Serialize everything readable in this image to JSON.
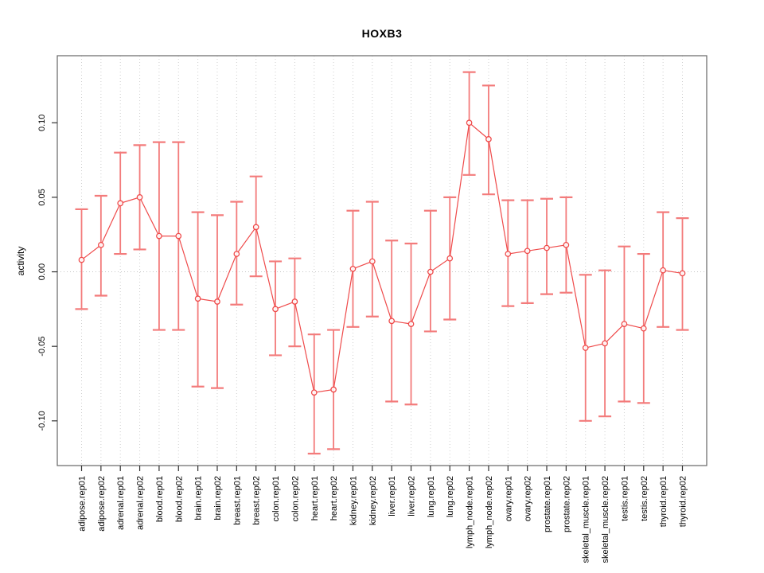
{
  "figure": {
    "kind": "R-style errorbar plot",
    "background": "#ffffff"
  },
  "chart_data": {
    "type": "scatter",
    "title": "HOXB3",
    "xlabel": "",
    "ylabel": "activity",
    "legend": "none",
    "grid": {
      "vertical_dotted_per_category": true,
      "horizontal_dotted_at_zero": true
    },
    "marker": "open-circle",
    "connected": true,
    "error_bars": true,
    "ylim": [
      -0.13,
      0.145
    ],
    "ytick_values": [
      0.1,
      0.05,
      0.0,
      -0.05,
      -0.1
    ],
    "ytick_labels": [
      "0.10",
      "0.05",
      "0.00",
      "-0.05",
      "-0.10"
    ],
    "categories": [
      "adipose.rep01",
      "adipose.rep02",
      "adrenal.rep01",
      "adrenal.rep02",
      "blood.rep01",
      "blood.rep02",
      "brain.rep01",
      "brain.rep02",
      "breast.rep01",
      "breast.rep02",
      "colon.rep01",
      "colon.rep02",
      "heart.rep01",
      "heart.rep02",
      "kidney.rep01",
      "kidney.rep02",
      "liver.rep01",
      "liver.rep02",
      "lung.rep01",
      "lung.rep02",
      "lymph_node.rep01",
      "lymph_node.rep02",
      "ovary.rep01",
      "ovary.rep02",
      "prostate.rep01",
      "prostate.rep02",
      "skeletal_muscle.rep01",
      "skeletal_muscle.rep02",
      "testis.rep01",
      "testis.rep02",
      "thyroid.rep01",
      "thyroid.rep02"
    ],
    "series": [
      {
        "name": "activity",
        "values": [
          0.008,
          0.018,
          0.046,
          0.05,
          0.024,
          0.024,
          -0.018,
          -0.02,
          0.012,
          0.03,
          -0.025,
          -0.02,
          -0.081,
          -0.079,
          0.002,
          0.007,
          -0.033,
          -0.035,
          0.0,
          0.009,
          0.1,
          0.089,
          0.012,
          0.014,
          0.016,
          0.018,
          -0.051,
          -0.048,
          -0.035,
          -0.038,
          0.001,
          -0.001
        ],
        "upper": [
          0.042,
          0.051,
          0.08,
          0.085,
          0.087,
          0.087,
          0.04,
          0.038,
          0.047,
          0.064,
          0.007,
          0.009,
          -0.042,
          -0.039,
          0.041,
          0.047,
          0.021,
          0.019,
          0.041,
          0.05,
          0.134,
          0.125,
          0.048,
          0.048,
          0.049,
          0.05,
          -0.002,
          0.001,
          0.017,
          0.012,
          0.04,
          0.036
        ],
        "lower": [
          -0.025,
          -0.016,
          0.012,
          0.015,
          -0.039,
          -0.039,
          -0.077,
          -0.078,
          -0.022,
          -0.003,
          -0.056,
          -0.05,
          -0.122,
          -0.119,
          -0.037,
          -0.03,
          -0.087,
          -0.089,
          -0.04,
          -0.032,
          0.065,
          0.052,
          -0.023,
          -0.021,
          -0.015,
          -0.014,
          -0.1,
          -0.097,
          -0.087,
          -0.088,
          -0.037,
          -0.039
        ]
      }
    ],
    "colors": {
      "series": "#ef4a4a",
      "error_bar": "#f37b7b",
      "grid": "#cfcfcf",
      "zero_line": "#c4c4c4",
      "box": "#666666",
      "tick": "#333333",
      "text": "#000000"
    }
  }
}
